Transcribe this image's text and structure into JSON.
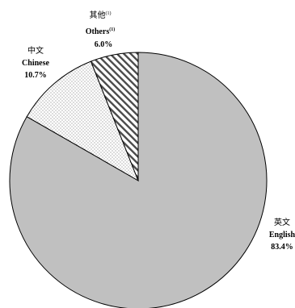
{
  "chart_data": {
    "type": "pie",
    "slices": [
      {
        "zh": "英文",
        "en": "English",
        "value": 83.4,
        "value_label": "83.4%",
        "fill": "#c0c0c0",
        "pattern": "solid"
      },
      {
        "zh": "中文",
        "en": "Chinese",
        "value": 10.7,
        "value_label": "10.7%",
        "fill": "#ffffff",
        "pattern": "dots"
      },
      {
        "zh": "其他",
        "en": "Others",
        "value": 6.0,
        "value_label": "6.0%",
        "fill": "#ffffff",
        "pattern": "diagonal",
        "note": "(1)"
      }
    ]
  }
}
